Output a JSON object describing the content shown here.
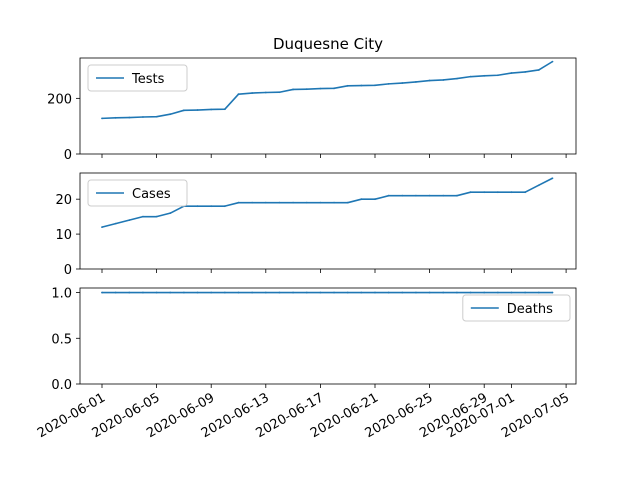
{
  "title": "Duquesne City",
  "chart_data": [
    {
      "type": "line",
      "title": "Duquesne City",
      "x": [
        "2020-06-01",
        "2020-06-02",
        "2020-06-03",
        "2020-06-04",
        "2020-06-05",
        "2020-06-06",
        "2020-06-07",
        "2020-06-08",
        "2020-06-09",
        "2020-06-10",
        "2020-06-11",
        "2020-06-12",
        "2020-06-13",
        "2020-06-14",
        "2020-06-15",
        "2020-06-16",
        "2020-06-17",
        "2020-06-18",
        "2020-06-19",
        "2020-06-20",
        "2020-06-21",
        "2020-06-22",
        "2020-06-23",
        "2020-06-24",
        "2020-06-25",
        "2020-06-26",
        "2020-06-27",
        "2020-06-28",
        "2020-06-29",
        "2020-06-30",
        "2020-07-01",
        "2020-07-02",
        "2020-07-03",
        "2020-07-04"
      ],
      "series": [
        {
          "name": "Tests",
          "values": [
            128,
            130,
            131,
            133,
            134,
            143,
            157,
            158,
            160,
            161,
            215,
            219,
            221,
            222,
            232,
            233,
            235,
            236,
            245,
            246,
            247,
            252,
            255,
            259,
            264,
            266,
            271,
            278,
            281,
            283,
            291,
            295,
            302,
            332
          ]
        }
      ],
      "ylim": [
        0,
        345
      ],
      "yticks": [
        "0",
        "200"
      ],
      "legend": "upper left",
      "xlabel": "",
      "ylabel": ""
    },
    {
      "type": "line",
      "x": [
        "2020-06-01",
        "2020-06-02",
        "2020-06-03",
        "2020-06-04",
        "2020-06-05",
        "2020-06-06",
        "2020-06-07",
        "2020-06-08",
        "2020-06-09",
        "2020-06-10",
        "2020-06-11",
        "2020-06-12",
        "2020-06-13",
        "2020-06-14",
        "2020-06-15",
        "2020-06-16",
        "2020-06-17",
        "2020-06-18",
        "2020-06-19",
        "2020-06-20",
        "2020-06-21",
        "2020-06-22",
        "2020-06-23",
        "2020-06-24",
        "2020-06-25",
        "2020-06-26",
        "2020-06-27",
        "2020-06-28",
        "2020-06-29",
        "2020-06-30",
        "2020-07-01",
        "2020-07-02",
        "2020-07-03",
        "2020-07-04"
      ],
      "series": [
        {
          "name": "Cases",
          "values": [
            12,
            13,
            14,
            15,
            15,
            16,
            18,
            18,
            18,
            18,
            19,
            19,
            19,
            19,
            19,
            19,
            19,
            19,
            19,
            20,
            20,
            21,
            21,
            21,
            21,
            21,
            21,
            22,
            22,
            22,
            22,
            22,
            24,
            26
          ]
        }
      ],
      "ylim": [
        0,
        27.5
      ],
      "yticks": [
        "0",
        "10",
        "20"
      ],
      "legend": "upper left",
      "xlabel": "",
      "ylabel": ""
    },
    {
      "type": "line",
      "x": [
        "2020-06-01",
        "2020-06-02",
        "2020-06-03",
        "2020-06-04",
        "2020-06-05",
        "2020-06-06",
        "2020-06-07",
        "2020-06-08",
        "2020-06-09",
        "2020-06-10",
        "2020-06-11",
        "2020-06-12",
        "2020-06-13",
        "2020-06-14",
        "2020-06-15",
        "2020-06-16",
        "2020-06-17",
        "2020-06-18",
        "2020-06-19",
        "2020-06-20",
        "2020-06-21",
        "2020-06-22",
        "2020-06-23",
        "2020-06-24",
        "2020-06-25",
        "2020-06-26",
        "2020-06-27",
        "2020-06-28",
        "2020-06-29",
        "2020-06-30",
        "2020-07-01",
        "2020-07-02",
        "2020-07-03",
        "2020-07-04"
      ],
      "series": [
        {
          "name": "Deaths",
          "values": [
            1,
            1,
            1,
            1,
            1,
            1,
            1,
            1,
            1,
            1,
            1,
            1,
            1,
            1,
            1,
            1,
            1,
            1,
            1,
            1,
            1,
            1,
            1,
            1,
            1,
            1,
            1,
            1,
            1,
            1,
            1,
            1,
            1,
            1
          ]
        }
      ],
      "ylim": [
        0,
        1.05
      ],
      "yticks": [
        "0.0",
        "0.5",
        "1.0"
      ],
      "legend": "upper right",
      "xlabel": "",
      "ylabel": "",
      "xtick_labels": [
        "2020-06-01",
        "2020-06-05",
        "2020-06-09",
        "2020-06-13",
        "2020-06-17",
        "2020-06-21",
        "2020-06-25",
        "2020-06-29",
        "2020-07-01",
        "2020-07-05"
      ]
    }
  ],
  "colors": {
    "line": "#1f77b4"
  }
}
